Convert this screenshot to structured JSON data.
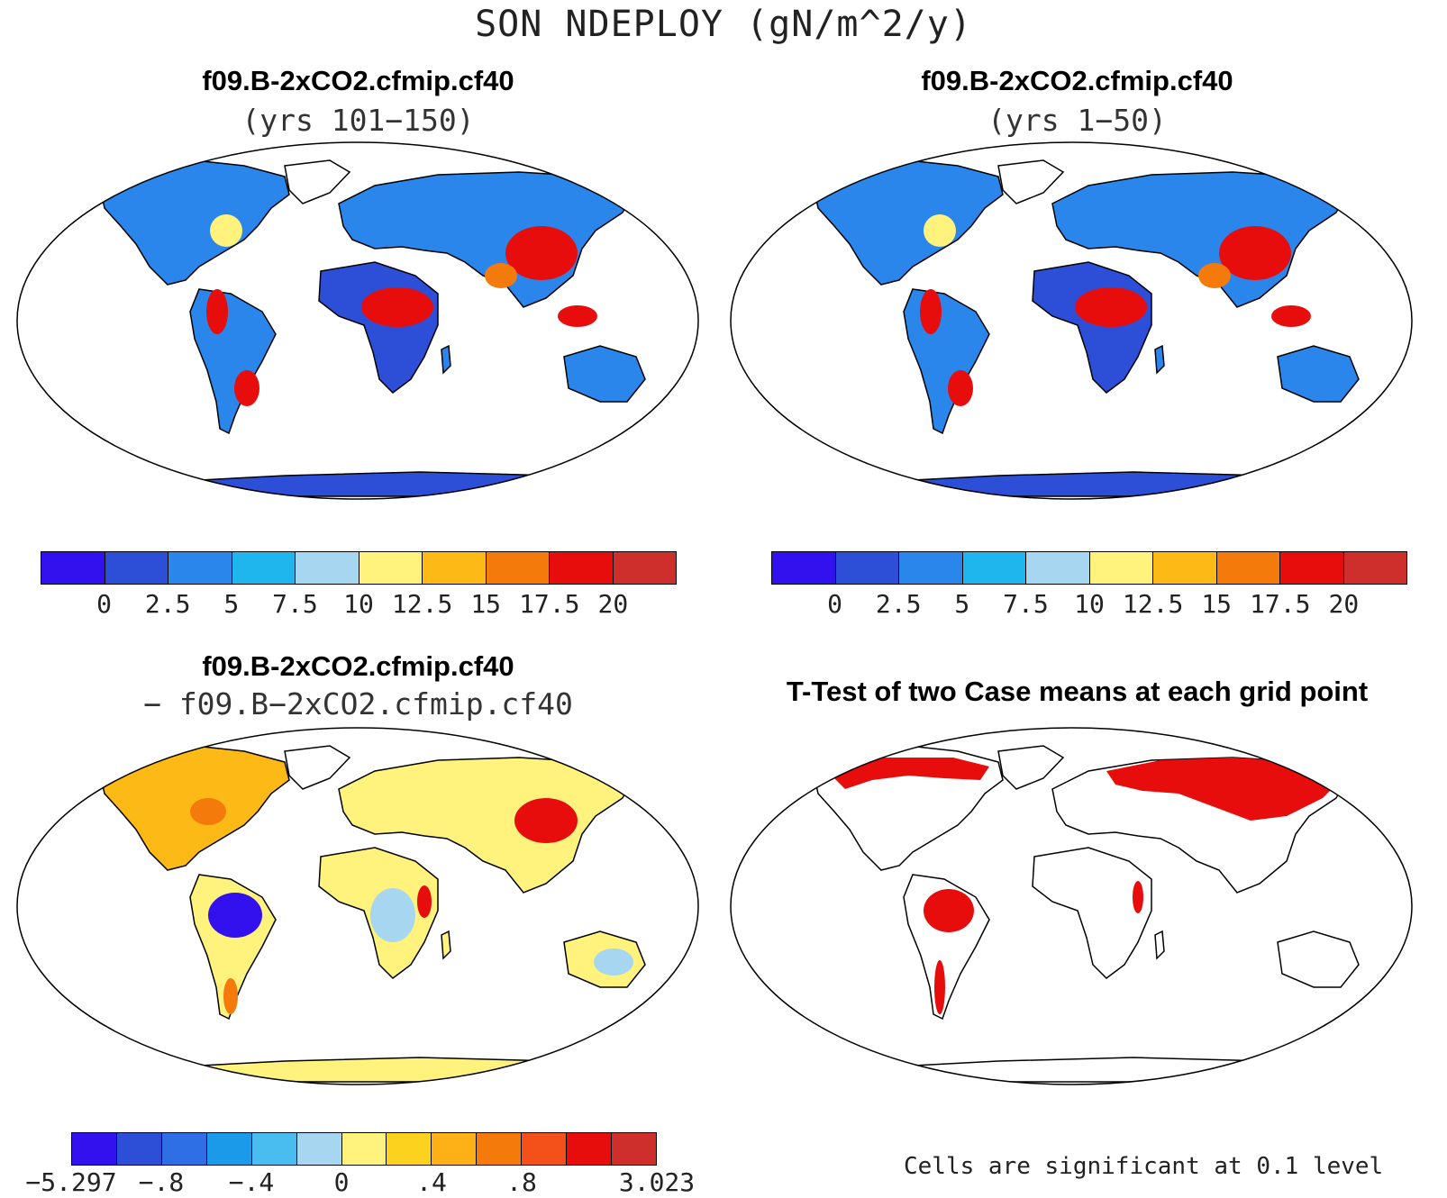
{
  "title": "SON NDEPLOY (gN/m^2/y)",
  "panels": [
    {
      "title": "f09.B-2xCO2.cfmip.cf40",
      "subtitle": "(yrs 101−150)"
    },
    {
      "title": "f09.B-2xCO2.cfmip.cf40",
      "subtitle": "(yrs 1−50)"
    },
    {
      "title": "f09.B-2xCO2.cfmip.cf40",
      "subtitle": "− f09.B−2xCO2.cfmip.cf40"
    },
    {
      "title": "T-Test of two Case means at each grid point",
      "subtitle": ""
    }
  ],
  "colorbar_abs": {
    "colors": [
      "#3311ee",
      "#2d4fd8",
      "#2a86ea",
      "#1fb6ee",
      "#a6d6f0",
      "#fff27d",
      "#fdb916",
      "#f47a0c",
      "#e80d0d",
      "#cf2f2c"
    ],
    "labels": [
      "0",
      "2.5",
      "5",
      "7.5",
      "10",
      "12.5",
      "15",
      "17.5",
      "20"
    ]
  },
  "colorbar_diff": {
    "colors": [
      "#3311ee",
      "#2d4fd8",
      "#2f6fe6",
      "#1a9ae8",
      "#49bdf0",
      "#a6d6f0",
      "#fff27d",
      "#fdd21f",
      "#fdb117",
      "#f47a0c",
      "#f4501a",
      "#e80d0d",
      "#cf2f2c"
    ],
    "labels": [
      "−5.297",
      "−.8",
      "−.4",
      "0",
      ".4",
      ".8",
      "3.023"
    ]
  },
  "note": "Cells are significant at 0.1 level"
}
